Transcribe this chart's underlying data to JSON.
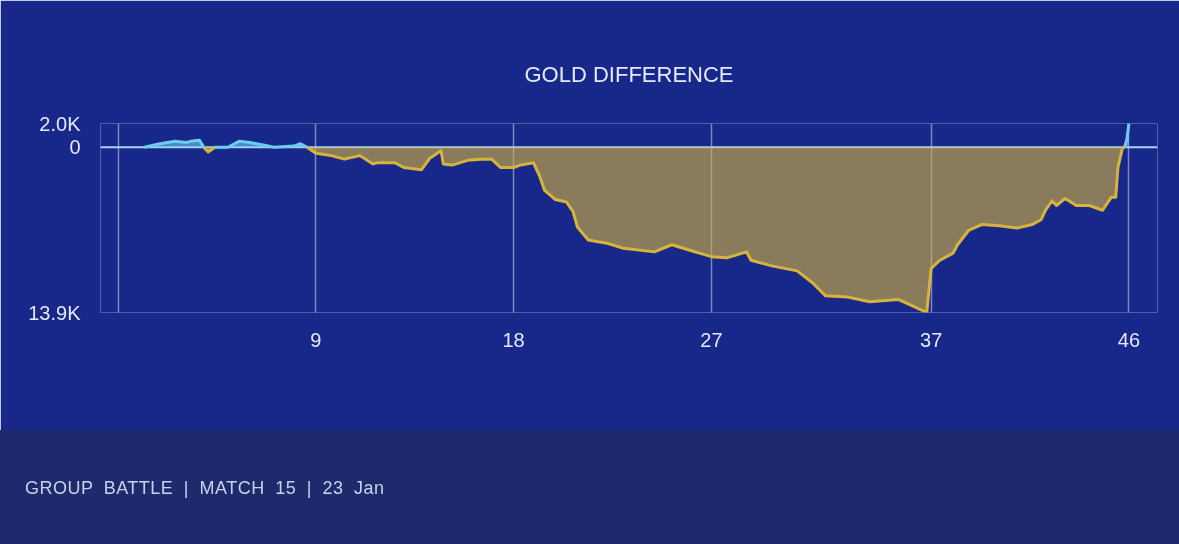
{
  "chart_data": {
    "type": "area",
    "title": "GOLD DIFFERENCE",
    "annotations": [
      "GROUP BATTLE | MATCH 15 | 23 Jan"
    ],
    "x": [
      1.2,
      1.9,
      2.6,
      3.1,
      3.3,
      3.7,
      3.9,
      4.1,
      4.4,
      5.0,
      5.5,
      6.0,
      6.6,
      7.1,
      8.0,
      8.3,
      8.6,
      9.0,
      9.7,
      10.3,
      11.0,
      11.6,
      11.8,
      12.6,
      13.0,
      13.8,
      14.2,
      14.7,
      14.8,
      15.2,
      15.9,
      16.5,
      17.0,
      17.4,
      18.0,
      18.3,
      18.9,
      19.2,
      19.4,
      19.9,
      20.4,
      20.7,
      20.9,
      21.4,
      22.3,
      23.0,
      24.4,
      25.2,
      25.9,
      27.0,
      27.7,
      28.6,
      28.8,
      29.8,
      30.9,
      31.6,
      32.2,
      33.2,
      34.2,
      35.5,
      36.1,
      36.8,
      37.0,
      37.4,
      38.0,
      38.2,
      38.7,
      39.3,
      40.1,
      40.9,
      41.6,
      42.0,
      42.2,
      42.5,
      42.7,
      43.1,
      43.6,
      44.2,
      44.8,
      45.2,
      45.4,
      45.5,
      45.7,
      45.8,
      45.9,
      46.0
    ],
    "series": [
      {
        "color": "#6ccdf0",
        "values": [
          0,
          300,
          500,
          400,
          500,
          600,
          0,
          null,
          0,
          0,
          500,
          400,
          200,
          0,
          100,
          300,
          0,
          null,
          null,
          null,
          null,
          null,
          null,
          null,
          null,
          null,
          null,
          null,
          null,
          null,
          null,
          null,
          null,
          null,
          null,
          null,
          null,
          null,
          null,
          null,
          null,
          null,
          null,
          null,
          null,
          null,
          null,
          null,
          null,
          null,
          null,
          null,
          null,
          null,
          null,
          null,
          null,
          null,
          null,
          null,
          null,
          null,
          null,
          null,
          null,
          null,
          null,
          null,
          null,
          null,
          null,
          null,
          null,
          null,
          null,
          null,
          null,
          null,
          null,
          null,
          null,
          null,
          null,
          0,
          600,
          2000
        ]
      },
      {
        "color": "#d6b43c",
        "values": [
          null,
          null,
          null,
          null,
          null,
          null,
          0,
          -400,
          0,
          null,
          null,
          null,
          null,
          null,
          null,
          null,
          0,
          -500,
          -700,
          -1000,
          -700,
          -1400,
          -1300,
          -1300,
          -1700,
          -1900,
          -900,
          -300,
          -1400,
          -1500,
          -1100,
          -1000,
          -1000,
          -1700,
          -1700,
          -1500,
          -1300,
          -2500,
          -3600,
          -4400,
          -4600,
          -5400,
          -6700,
          -7800,
          -8100,
          -8500,
          -8800,
          -8200,
          -8600,
          -9200,
          -9300,
          -8800,
          -9500,
          -10000,
          -10400,
          -11400,
          -12500,
          -12600,
          -13000,
          -12800,
          -13300,
          -13900,
          -10200,
          -9500,
          -8900,
          -8200,
          -7000,
          -6500,
          -6600,
          -6800,
          -6500,
          -6100,
          -5300,
          -4500,
          -4900,
          -4300,
          -4900,
          -4900,
          -5300,
          -4200,
          -4200,
          -1700,
          -100,
          0,
          null,
          null
        ]
      }
    ],
    "xlim": [
      -0.8,
      47.3
    ],
    "xticks": [
      {
        "value": 0,
        "label": null
      },
      9,
      18,
      27,
      37,
      46
    ],
    "ylim": [
      -13900,
      2000
    ],
    "yticks": [
      {
        "value": -13900,
        "label": "13.9K"
      },
      0,
      {
        "value": 2000,
        "label": "2.0K"
      }
    ],
    "grid": "x",
    "ref_lines": [
      {
        "axis": "y",
        "value": 0,
        "color": "#a9d4f2"
      }
    ]
  }
}
